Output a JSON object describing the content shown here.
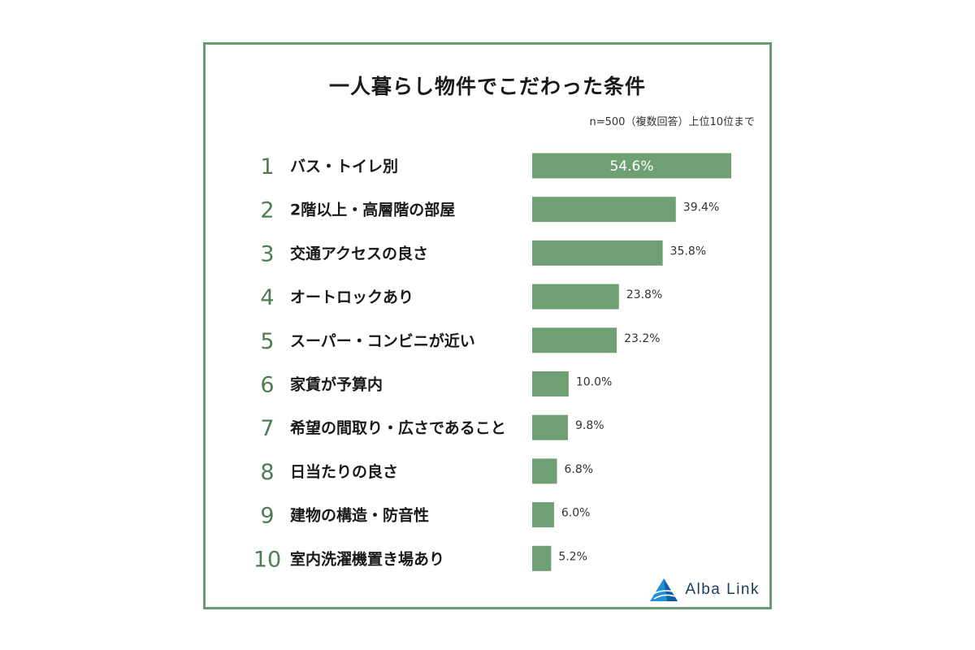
{
  "header": {
    "title": "一人暮らし物件でこだわった条件",
    "note": "n=500（複数回答）上位10位まで"
  },
  "brand": {
    "name": "Alba Link",
    "icon": "alba-link-logo-icon"
  },
  "colors": {
    "bar": "#6fa074",
    "rank": "#4f7d53",
    "frame": "#6a9a70",
    "inside_label": "#ffffff",
    "outside_label": "#333333"
  },
  "chart_data": {
    "type": "bar",
    "orientation": "horizontal",
    "categories": [
      "バス・トイレ別",
      "2階以上・高層階の部屋",
      "交通アクセスの良さ",
      "オートロックあり",
      "スーパー・コンビニが近い",
      "家賃が予算内",
      "希望の間取り・広さであること",
      "日当たりの良さ",
      "建物の構造・防音性",
      "室内洗濯機置き場あり"
    ],
    "ranks": [
      "1",
      "2",
      "3",
      "4",
      "5",
      "6",
      "7",
      "8",
      "9",
      "10"
    ],
    "values": [
      54.6,
      39.4,
      35.8,
      23.8,
      23.2,
      10.0,
      9.8,
      6.8,
      6.0,
      5.2
    ],
    "value_labels": [
      "54.6%",
      "39.4%",
      "35.8%",
      "23.8%",
      "23.2%",
      "10.0%",
      "9.8%",
      "6.8%",
      "6.0%",
      "5.2%"
    ],
    "unit": "%",
    "xlim": [
      0,
      54.6
    ],
    "grid": false,
    "legend": "none"
  }
}
